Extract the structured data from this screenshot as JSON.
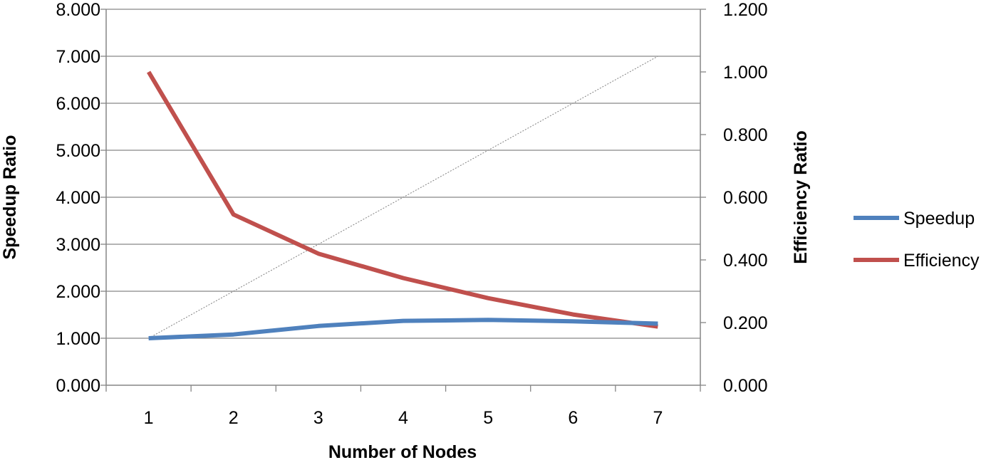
{
  "chart_data": {
    "type": "line",
    "title": "",
    "xlabel": "Number of Nodes",
    "ylabel": "Speedup Ratio",
    "y2label": "Efficiency Ratio",
    "categories": [
      "1",
      "2",
      "3",
      "4",
      "5",
      "6",
      "7"
    ],
    "ylim": [
      0,
      8
    ],
    "y2lim": [
      0,
      1.2
    ],
    "yticks": [
      "0.000",
      "1.000",
      "2.000",
      "3.000",
      "4.000",
      "5.000",
      "6.000",
      "7.000",
      "8.000"
    ],
    "y2ticks": [
      "0.000",
      "0.200",
      "0.400",
      "0.600",
      "0.800",
      "1.000",
      "1.200"
    ],
    "grid": true,
    "legend_position": "right",
    "series": [
      {
        "name": "Speedup",
        "axis": "left",
        "color": "#4F81BD",
        "values": [
          1.0,
          1.08,
          1.26,
          1.37,
          1.39,
          1.36,
          1.31
        ]
      },
      {
        "name": "Efficiency",
        "axis": "right",
        "color": "#C0504D",
        "values": [
          1.0,
          0.545,
          0.42,
          0.342,
          0.278,
          0.226,
          0.187
        ]
      },
      {
        "axis": "left",
        "color": "#808080",
        "dashed": true,
        "values": [
          1,
          2,
          3,
          4,
          5,
          6,
          7
        ]
      }
    ]
  }
}
